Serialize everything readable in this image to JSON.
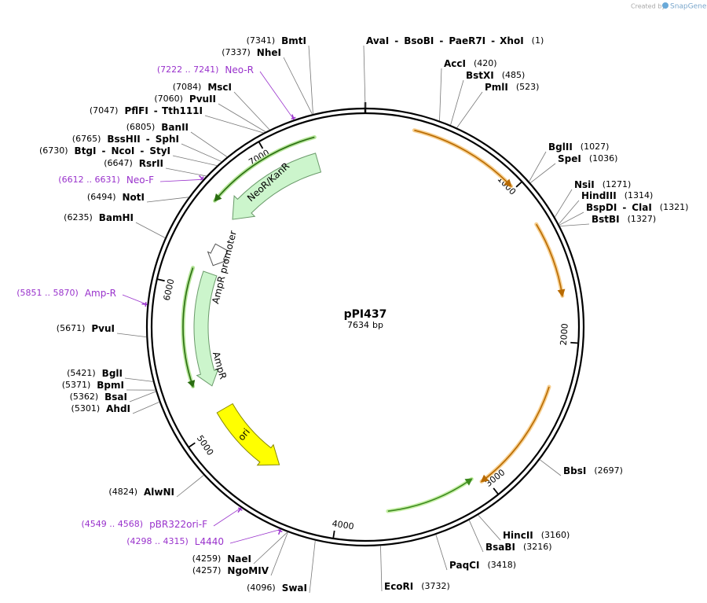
{
  "header": {
    "credit": "Created by",
    "brand": "SnapGene"
  },
  "plasmid": {
    "name": "pPI437",
    "length": 7634,
    "unit": "bp"
  },
  "ticks": [
    1000,
    2000,
    3000,
    4000,
    5000,
    6000,
    7000
  ],
  "site_separator": "-",
  "sites": [
    {
      "names": [
        "AvaI",
        "BsoBI",
        "PaeR7I",
        "XhoI"
      ],
      "position": "(1)"
    },
    {
      "names": [
        "AccI"
      ],
      "position": "(420)"
    },
    {
      "names": [
        "BstXI"
      ],
      "position": "(485)"
    },
    {
      "names": [
        "PmlI"
      ],
      "position": "(523)"
    },
    {
      "names": [
        "BglII"
      ],
      "position": "(1027)"
    },
    {
      "names": [
        "SpeI"
      ],
      "position": "(1036)"
    },
    {
      "names": [
        "NsiI"
      ],
      "position": "(1271)"
    },
    {
      "names": [
        "HindIII"
      ],
      "position": "(1314)"
    },
    {
      "names": [
        "BspDI",
        "ClaI"
      ],
      "position": "(1321)"
    },
    {
      "names": [
        "BstBI"
      ],
      "position": "(1327)"
    },
    {
      "names": [
        "BbsI"
      ],
      "position": "(2697)"
    },
    {
      "names": [
        "HincII"
      ],
      "position": "(3160)"
    },
    {
      "names": [
        "BsaBI"
      ],
      "position": "(3216)"
    },
    {
      "names": [
        "PaqCI"
      ],
      "position": "(3418)"
    },
    {
      "names": [
        "EcoRI"
      ],
      "position": "(3732)"
    },
    {
      "names": [
        "SwaI"
      ],
      "position": "(4096)"
    },
    {
      "names": [
        "NgoMIV"
      ],
      "position": "(4257)"
    },
    {
      "names": [
        "NaeI"
      ],
      "position": "(4259)"
    },
    {
      "names": [
        "AlwNI"
      ],
      "position": "(4824)"
    },
    {
      "names": [
        "AhdI"
      ],
      "position": "(5301)"
    },
    {
      "names": [
        "BsaI"
      ],
      "position": "(5362)"
    },
    {
      "names": [
        "BpmI"
      ],
      "position": "(5371)"
    },
    {
      "names": [
        "BglI"
      ],
      "position": "(5421)"
    },
    {
      "names": [
        "PvuI"
      ],
      "position": "(5671)"
    },
    {
      "names": [
        "BamHI"
      ],
      "position": "(6235)"
    },
    {
      "names": [
        "NotI"
      ],
      "position": "(6494)"
    },
    {
      "names": [
        "RsrII"
      ],
      "position": "(6647)"
    },
    {
      "names": [
        "BtgI",
        "NcoI",
        "StyI"
      ],
      "position": "(6730)"
    },
    {
      "names": [
        "BssHII",
        "SphI"
      ],
      "position": "(6765)"
    },
    {
      "names": [
        "BanII"
      ],
      "position": "(6805)"
    },
    {
      "names": [
        "PflFI",
        "Tth111I"
      ],
      "position": "(7047)"
    },
    {
      "names": [
        "PvuII"
      ],
      "position": "(7060)"
    },
    {
      "names": [
        "MscI"
      ],
      "position": "(7084)"
    },
    {
      "names": [
        "NheI"
      ],
      "position": "(7337)"
    },
    {
      "names": [
        "BmtI"
      ],
      "position": "(7341)"
    }
  ],
  "primers": [
    {
      "name": "Neo-R",
      "position": "(7222 .. 7241)"
    },
    {
      "name": "Neo-F",
      "position": "(6612 .. 6631)"
    },
    {
      "name": "Amp-R",
      "position": "(5851 .. 5870)"
    },
    {
      "name": "pBR322ori-F",
      "position": "(4549 .. 4568)"
    },
    {
      "name": "L4440",
      "position": "(4298 .. 4315)"
    }
  ],
  "features": [
    "NeoR/KanR",
    "AmpR promoter",
    "AmpR",
    "ori"
  ]
}
